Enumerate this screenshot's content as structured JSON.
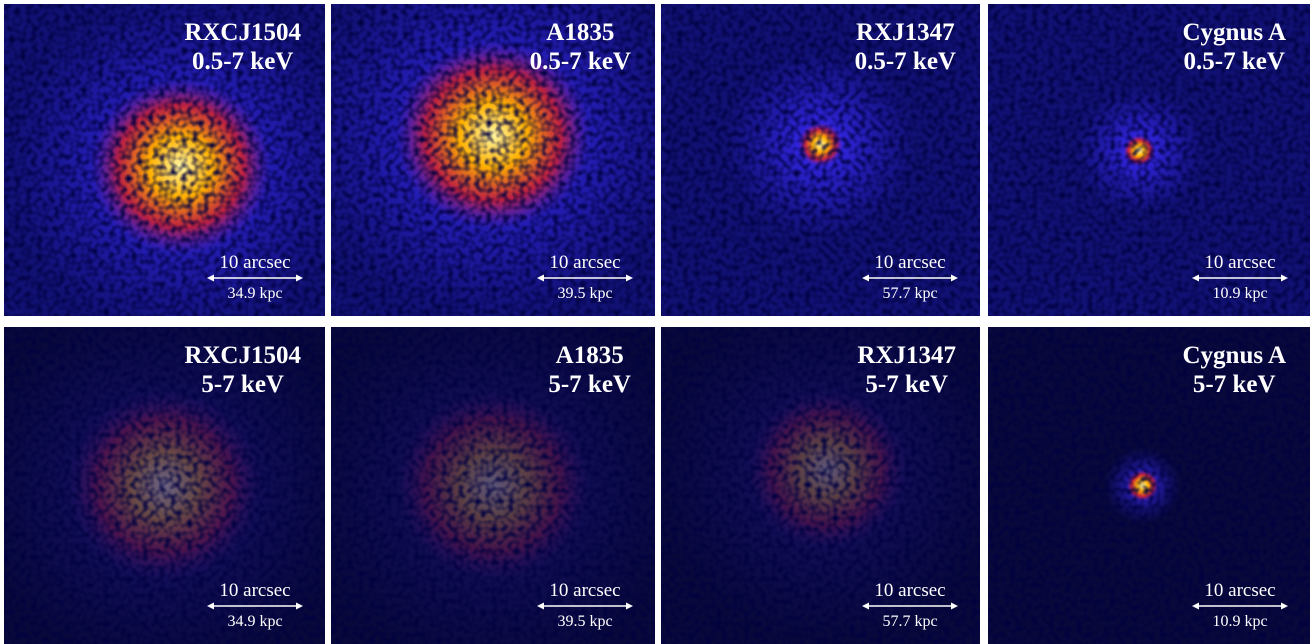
{
  "rows": [
    [
      {
        "name": "RXCJ1504",
        "band": "0.5-7 keV",
        "scale": "10 arcsec",
        "distance": "34.9 kpc"
      },
      {
        "name": "A1835",
        "band": "0.5-7 keV",
        "scale": "10 arcsec",
        "distance": "39.5 kpc"
      },
      {
        "name": "RXJ1347",
        "band": "0.5-7 keV",
        "scale": "10 arcsec",
        "distance": "57.7 kpc"
      },
      {
        "name": "Cygnus A",
        "band": "0.5-7 keV",
        "scale": "10 arcsec",
        "distance": "10.9 kpc"
      }
    ],
    [
      {
        "name": "RXCJ1504",
        "band": "5-7 keV",
        "scale": "10 arcsec",
        "distance": "34.9 kpc"
      },
      {
        "name": "A1835",
        "band": "5-7 keV",
        "scale": "10 arcsec",
        "distance": "39.5 kpc"
      },
      {
        "name": "RXJ1347",
        "band": "5-7 keV",
        "scale": "10 arcsec",
        "distance": "57.7 kpc"
      },
      {
        "name": "Cygnus A",
        "band": "5-7 keV",
        "scale": "10 arcsec",
        "distance": "10.9 kpc"
      }
    ]
  ]
}
